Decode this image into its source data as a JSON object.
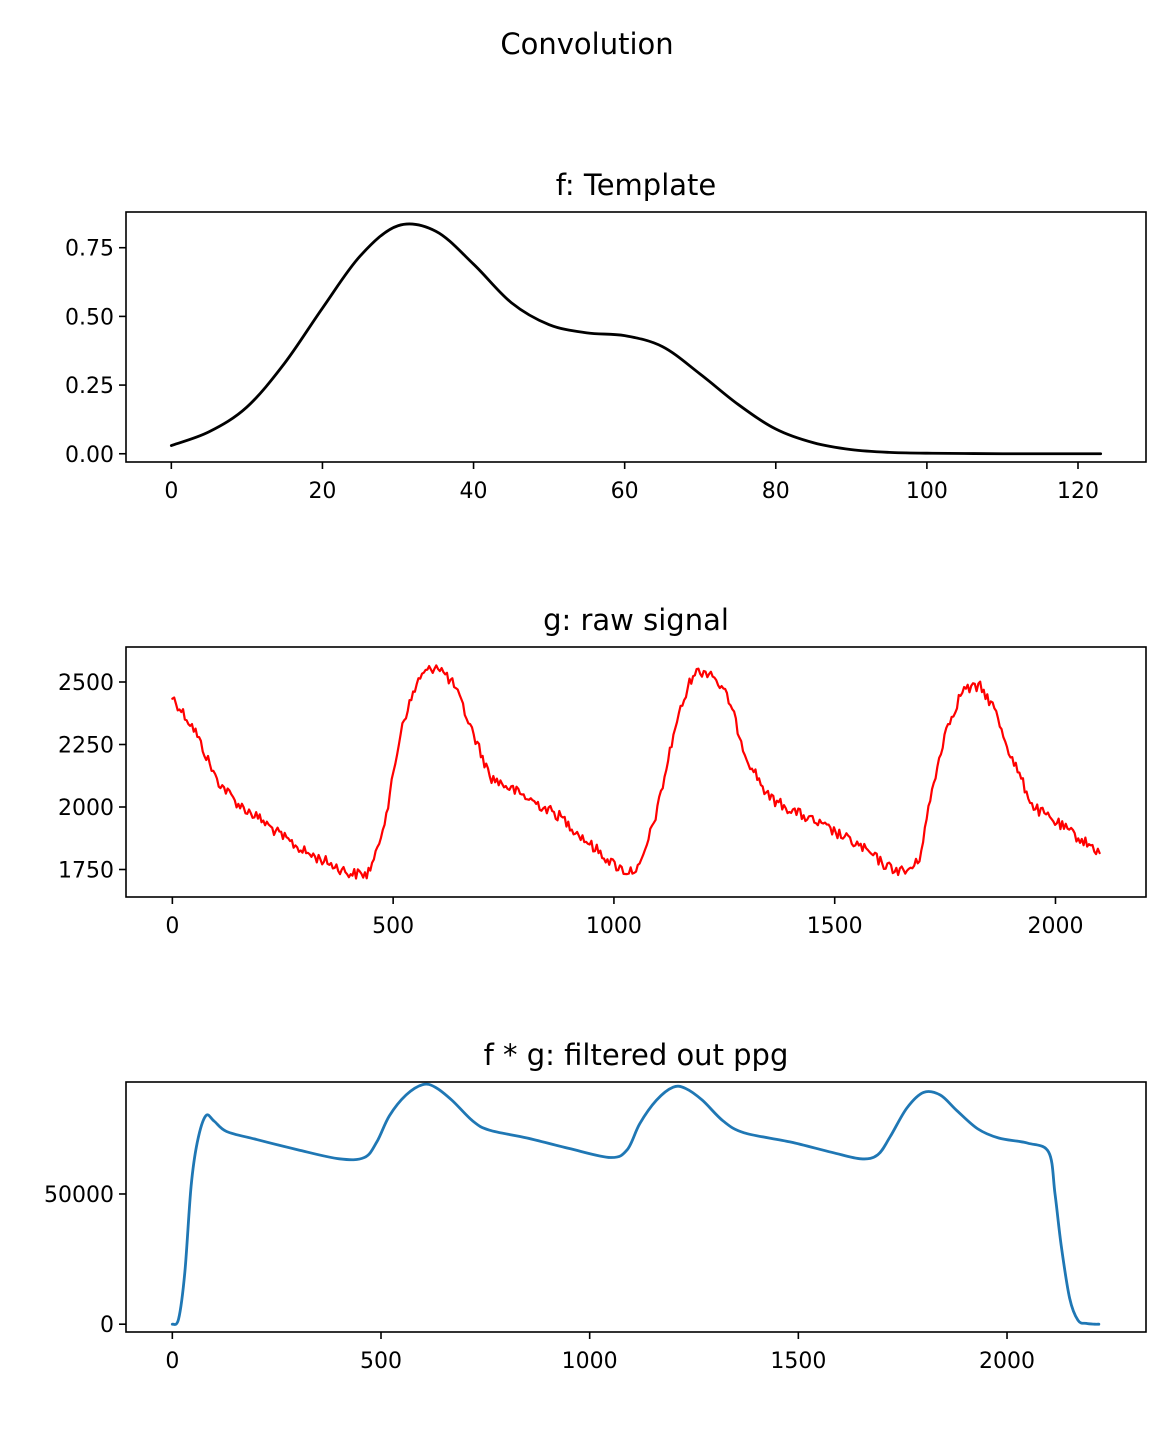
{
  "figure": {
    "suptitle": "Convolution"
  },
  "chart_data": [
    {
      "type": "line",
      "title": "f: Template",
      "xlabel": "",
      "ylabel": "",
      "xlim": [
        -6,
        129
      ],
      "ylim": [
        -0.03,
        0.88
      ],
      "xticks": [
        0,
        20,
        40,
        60,
        80,
        100,
        120
      ],
      "yticks": [
        0.0,
        0.25,
        0.5,
        0.75
      ],
      "ytick_labels": [
        "0.00",
        "0.25",
        "0.50",
        "0.75"
      ],
      "grid": false,
      "series": [
        {
          "color": "#000000",
          "x": [
            0,
            5,
            10,
            15,
            20,
            25,
            30,
            35,
            40,
            45,
            50,
            55,
            60,
            65,
            70,
            75,
            80,
            85,
            90,
            95,
            100,
            105,
            110,
            115,
            120,
            123
          ],
          "y": [
            0.03,
            0.08,
            0.17,
            0.33,
            0.53,
            0.72,
            0.83,
            0.81,
            0.69,
            0.55,
            0.47,
            0.44,
            0.43,
            0.39,
            0.29,
            0.18,
            0.09,
            0.04,
            0.015,
            0.005,
            0.002,
            0.001,
            0.0,
            0.0,
            0.0,
            0.0
          ]
        }
      ]
    },
    {
      "type": "line",
      "title": "g: raw signal",
      "xlabel": "",
      "ylabel": "",
      "xlim": [
        -105,
        2205
      ],
      "ylim": [
        1640,
        2640
      ],
      "xticks": [
        0,
        500,
        1000,
        1500,
        2000
      ],
      "yticks": [
        1750,
        2000,
        2250,
        2500
      ],
      "ytick_labels": [
        "1750",
        "2000",
        "2250",
        "2500"
      ],
      "grid": false,
      "series": [
        {
          "color": "#ff0000",
          "noisy": true,
          "x": [
            0,
            50,
            100,
            150,
            200,
            250,
            300,
            350,
            400,
            440,
            460,
            490,
            520,
            560,
            600,
            640,
            680,
            720,
            800,
            880,
            940,
            1000,
            1030,
            1060,
            1100,
            1140,
            1180,
            1220,
            1260,
            1300,
            1350,
            1400,
            1500,
            1560,
            1620,
            1660,
            1690,
            1720,
            1750,
            1790,
            1830,
            1860,
            1900,
            1950,
            2000,
            2050,
            2100
          ],
          "y": [
            2440,
            2310,
            2110,
            2010,
            1950,
            1880,
            1820,
            1780,
            1735,
            1730,
            1800,
            2020,
            2330,
            2520,
            2570,
            2480,
            2300,
            2120,
            2040,
            1960,
            1860,
            1770,
            1740,
            1760,
            2000,
            2330,
            2540,
            2540,
            2430,
            2200,
            2040,
            1990,
            1900,
            1840,
            1760,
            1740,
            1780,
            2060,
            2300,
            2470,
            2480,
            2400,
            2200,
            2000,
            1940,
            1880,
            1820
          ]
        }
      ]
    },
    {
      "type": "line",
      "title": "f * g: filtered out ppg",
      "xlabel": "",
      "ylabel": "",
      "xlim": [
        -111,
        2333
      ],
      "ylim": [
        -3000,
        93000
      ],
      "xticks": [
        0,
        500,
        1000,
        1500,
        2000
      ],
      "yticks": [
        0,
        50000
      ],
      "ytick_labels": [
        "0",
        "50000"
      ],
      "grid": false,
      "series": [
        {
          "color": "#1f77b4",
          "x": [
            0,
            15,
            30,
            45,
            60,
            80,
            100,
            130,
            200,
            300,
            400,
            460,
            490,
            520,
            560,
            600,
            630,
            670,
            720,
            760,
            850,
            950,
            1050,
            1090,
            1120,
            1160,
            1200,
            1230,
            1270,
            1320,
            1370,
            1480,
            1580,
            1650,
            1690,
            1720,
            1760,
            1800,
            1840,
            1880,
            1930,
            1980,
            2050,
            2100,
            2115,
            2130,
            2150,
            2170,
            2190,
            2210,
            2220
          ],
          "y": [
            0,
            2000,
            20000,
            53000,
            70000,
            80000,
            78000,
            74000,
            71000,
            67000,
            63500,
            64000,
            70000,
            80000,
            88000,
            92000,
            91000,
            86000,
            78000,
            74500,
            71500,
            67500,
            64000,
            67000,
            77000,
            86000,
            91000,
            90500,
            86000,
            78000,
            73500,
            70000,
            66000,
            63500,
            65000,
            72000,
            83000,
            89000,
            88000,
            82000,
            75000,
            71500,
            69500,
            66000,
            50000,
            30000,
            10000,
            1500,
            300,
            0,
            0
          ]
        }
      ]
    }
  ]
}
